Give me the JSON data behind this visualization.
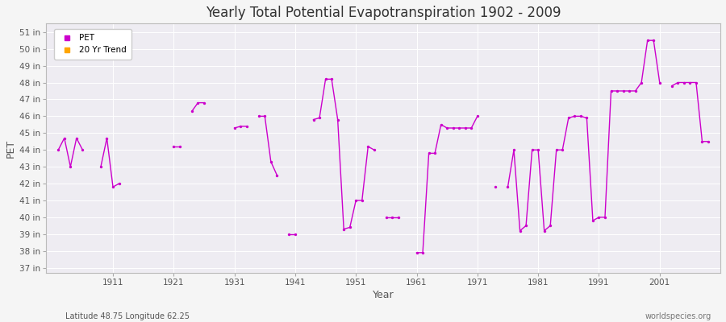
{
  "title": "Yearly Total Potential Evapotranspiration 1902 - 2009",
  "xlabel": "Year",
  "ylabel": "PET",
  "x_label_bottom": "Latitude 48.75 Longitude 62.25",
  "x_label_right": "worldspecies.org",
  "bg_color": "#f5f5f5",
  "plot_bg_color": "#eeecf2",
  "grid_color": "#ffffff",
  "pet_color": "#cc00cc",
  "trend_color": "#ffa500",
  "ylim_min": 37,
  "ylim_max": 51,
  "ytick_labels": [
    "37 in",
    "38 in",
    "39 in",
    "40 in",
    "41 in",
    "42 in",
    "43 in",
    "44 in",
    "45 in",
    "46 in",
    "47 in",
    "48 in",
    "49 in",
    "50 in",
    "51 in"
  ],
  "ytick_values": [
    37,
    38,
    39,
    40,
    41,
    42,
    43,
    44,
    45,
    46,
    47,
    48,
    49,
    50,
    51
  ],
  "years": [
    1902,
    1903,
    1904,
    1905,
    1906,
    1909,
    1910,
    1911,
    1912,
    1921,
    1922,
    1924,
    1925,
    1926,
    1931,
    1932,
    1933,
    1935,
    1936,
    1937,
    1938,
    1940,
    1941,
    1944,
    1945,
    1946,
    1947,
    1948,
    1949,
    1950,
    1951,
    1952,
    1953,
    1954,
    1956,
    1957,
    1958,
    1961,
    1962,
    1963,
    1964,
    1965,
    1966,
    1967,
    1968,
    1969,
    1970,
    1971,
    1974,
    1976,
    1977,
    1978,
    1979,
    1980,
    1981,
    1982,
    1983,
    1984,
    1985,
    1986,
    1987,
    1988,
    1989,
    1990,
    1991,
    1992,
    1993,
    1994,
    1995,
    1996,
    1997,
    1998,
    1999,
    2000,
    2001,
    2003,
    2004,
    2005,
    2006,
    2007,
    2008,
    2009
  ],
  "pet_values": [
    44.0,
    44.7,
    43.0,
    44.7,
    44.0,
    43.0,
    44.7,
    41.8,
    42.0,
    44.2,
    44.2,
    46.3,
    46.8,
    46.8,
    45.3,
    45.4,
    45.4,
    46.0,
    46.0,
    43.3,
    42.5,
    39.0,
    39.0,
    45.8,
    45.9,
    48.2,
    48.2,
    45.8,
    39.3,
    39.4,
    41.0,
    41.0,
    44.2,
    44.0,
    40.0,
    40.0,
    40.0,
    37.9,
    37.9,
    43.8,
    43.8,
    45.5,
    45.3,
    45.3,
    45.3,
    45.3,
    45.3,
    46.0,
    41.8,
    41.8,
    44.0,
    39.2,
    39.5,
    44.0,
    44.0,
    39.2,
    39.5,
    44.0,
    44.0,
    45.9,
    46.0,
    46.0,
    45.9,
    39.8,
    40.0,
    40.0,
    47.5,
    47.5,
    47.5,
    47.5,
    47.5,
    48.0,
    50.5,
    50.5,
    48.0,
    47.8,
    48.0,
    48.0,
    48.0,
    48.0,
    44.5,
    44.5
  ],
  "xtick_positions": [
    1911,
    1921,
    1931,
    1941,
    1951,
    1961,
    1971,
    1981,
    1991,
    2001
  ],
  "xtick_labels": [
    "1911",
    "1921",
    "1931",
    "1941",
    "1951",
    "1961",
    "1971",
    "1981",
    "1991",
    "2001"
  ],
  "xlim_min": 1900,
  "xlim_max": 2011
}
